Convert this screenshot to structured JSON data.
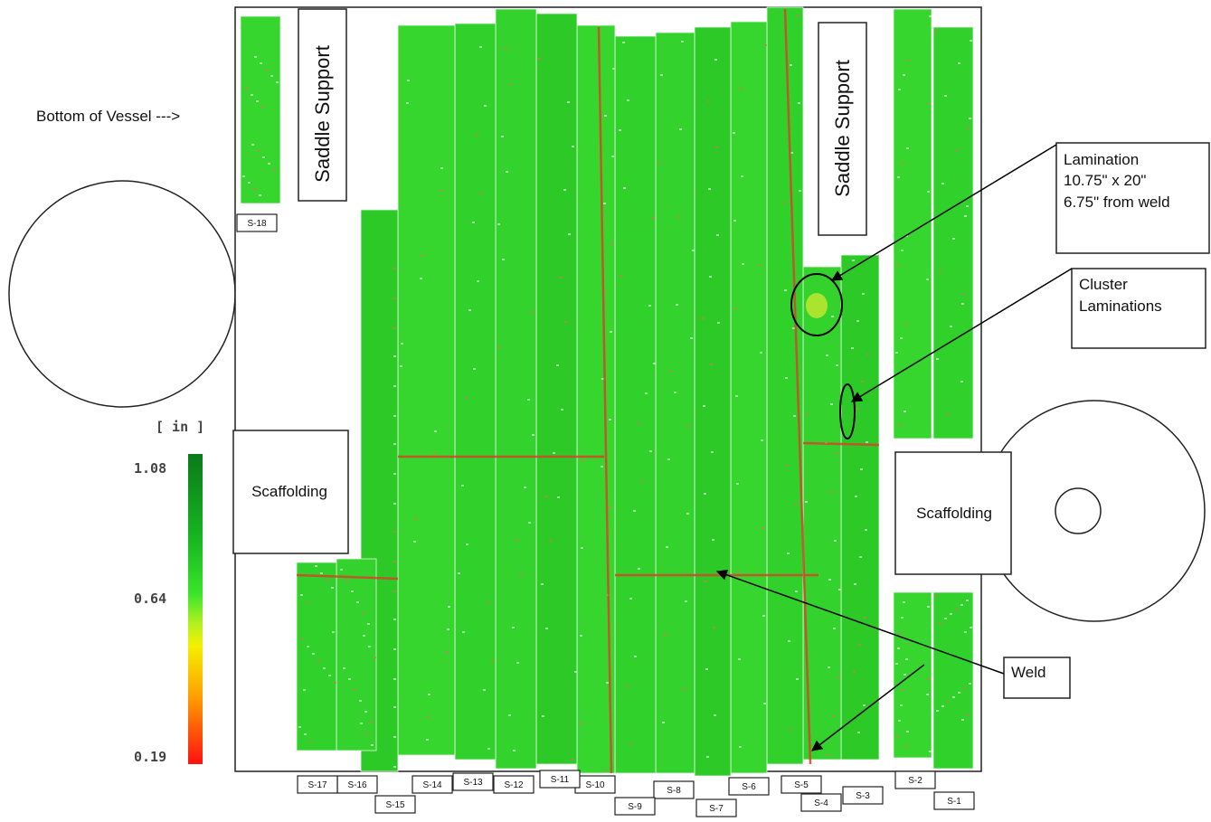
{
  "annotations": {
    "bottom_of_vessel": "Bottom of Vessel --->",
    "saddle_support_left": "Saddle Support",
    "saddle_support_right": "Saddle Support",
    "scaffolding_left": "Scaffolding",
    "scaffolding_right": "Scaffolding",
    "lamination": [
      "Lamination",
      "10.75\" x 20\"",
      "6.75\" from weld"
    ],
    "cluster": [
      "Cluster",
      "Laminations"
    ],
    "weld": "Weld"
  },
  "legend": {
    "unit": "[ in ]",
    "ticks": [
      "1.08",
      "0.64",
      "0.19"
    ]
  },
  "strips": [
    "S-1",
    "S-2",
    "S-3",
    "S-4",
    "S-5",
    "S-6",
    "S-7",
    "S-8",
    "S-9",
    "S-10",
    "S-11",
    "S-12",
    "S-13",
    "S-14",
    "S-15",
    "S-16",
    "S-17",
    "S-18"
  ]
}
